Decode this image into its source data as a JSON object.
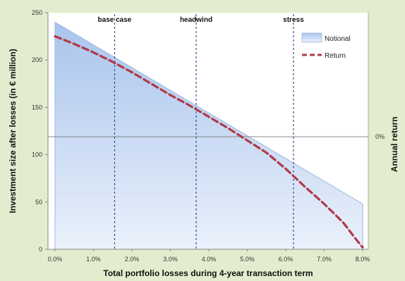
{
  "chart_data": {
    "type": "area",
    "xlabel": "Total portfolio losses during 4-year transaction term",
    "ylabel": "Investment size after losses (in € million)",
    "y2label": "Annual return",
    "y2_zero_label": "0%",
    "xlim": [
      0,
      8.0
    ],
    "ylim": [
      0,
      250
    ],
    "x_ticks": [
      "0.0%",
      "1.0%",
      "2.0%",
      "3.0%",
      "4.0%",
      "5.0%",
      "6.0%",
      "7.0%",
      "8.0%"
    ],
    "y_ticks": [
      "0",
      "50",
      "100",
      "150",
      "200",
      "250"
    ],
    "series": [
      {
        "name": "Notional",
        "x": [
          0.0,
          8.0
        ],
        "values": [
          240,
          48
        ]
      },
      {
        "name": "Return",
        "x": [
          0.0,
          0.5,
          1.0,
          1.5,
          2.0,
          2.5,
          3.0,
          3.5,
          4.0,
          4.5,
          5.0,
          5.5,
          6.0,
          6.5,
          7.0,
          7.5,
          7.8,
          8.0
        ],
        "values": [
          225,
          217,
          208,
          198,
          187,
          175,
          163,
          152,
          140,
          128,
          115,
          102,
          85,
          66,
          48,
          28,
          12,
          2
        ]
      }
    ],
    "reference_line_y": 119,
    "scenarios": [
      {
        "label": "base case",
        "x": 1.55
      },
      {
        "label": "headwind",
        "x": 3.67
      },
      {
        "label": "stress",
        "x": 6.2
      }
    ],
    "legend_position": "top-right",
    "colors": {
      "background": "#e3ecce",
      "plot_background": "#ffffff",
      "notional_fill_top": "#a9c4ec",
      "notional_fill_bottom": "#eaf1fb",
      "notional_stroke": "#9fb7dd",
      "return_line": "#b03a48",
      "scenario_line": "#2f4f8a",
      "reference_line": "#8a8a8a"
    }
  }
}
